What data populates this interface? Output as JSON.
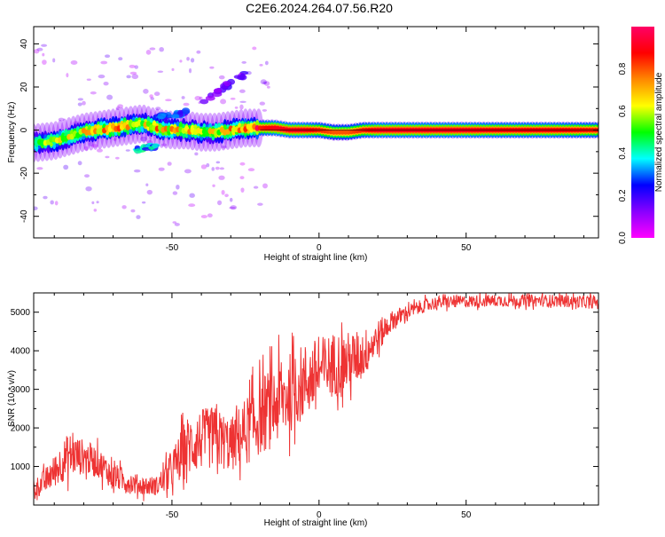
{
  "figure": {
    "title": "C2E6.2024.264.07.56.R20"
  },
  "chart_data": [
    {
      "type": "heatmap",
      "xlabel": "Height of straight line (km)",
      "ylabel": "Frequency (Hz)",
      "xlim": [
        -97,
        95
      ],
      "ylim": [
        -50,
        48
      ],
      "xticks": [
        -50,
        0,
        50
      ],
      "yticks": [
        -40,
        -20,
        0,
        20,
        40
      ],
      "colorbar": {
        "label": "Normalized spectral amplitude",
        "range": [
          0.0,
          1.0
        ],
        "ticks": [
          0.0,
          0.2,
          0.4,
          0.6,
          0.8
        ],
        "colors": [
          "#ff00ff",
          "#8800ff",
          "#0000ff",
          "#00ffff",
          "#00ff00",
          "#ffff00",
          "#ff8800",
          "#ff0000",
          "#ff0066"
        ]
      },
      "ridge": {
        "x": [
          -97,
          -90,
          -85,
          -80,
          -75,
          -70,
          -65,
          -60,
          -55,
          -50,
          -45,
          -40,
          -35,
          -30,
          -25,
          -20,
          -15,
          -10,
          -5,
          0,
          5,
          10,
          15,
          20,
          30,
          40,
          50,
          60,
          70,
          80,
          95
        ],
        "y": [
          -6,
          -5,
          -3,
          -1,
          0,
          1,
          2,
          3,
          1,
          0,
          0,
          -1,
          -1,
          0,
          1,
          1,
          1,
          0,
          0,
          0,
          -1,
          -1,
          0,
          0,
          0,
          0,
          0,
          0,
          0,
          0,
          0
        ],
        "amplitude": [
          0.5,
          0.6,
          0.6,
          0.65,
          0.7,
          0.75,
          0.7,
          0.6,
          0.7,
          0.65,
          0.65,
          0.6,
          0.6,
          0.7,
          0.75,
          0.85,
          0.9,
          0.9,
          0.9,
          0.85,
          0.8,
          0.8,
          0.85,
          0.9,
          0.9,
          0.9,
          0.9,
          0.88,
          0.88,
          0.88,
          0.85
        ]
      },
      "side_branches": [
        {
          "x": [
            -62,
            -58,
            -55
          ],
          "y": [
            -9,
            -8,
            -7
          ],
          "amplitude": 0.45
        },
        {
          "x": [
            -55,
            -50,
            -45
          ],
          "y": [
            6,
            7,
            8
          ],
          "amplitude": 0.3
        },
        {
          "x": [
            -40,
            -35,
            -30,
            -25
          ],
          "y": [
            12,
            17,
            22,
            26
          ],
          "amplitude": 0.2
        }
      ]
    },
    {
      "type": "line",
      "xlabel": "Height of straight line (km)",
      "ylabel": "SNR (10 * v/v)",
      "xlim": [
        -97,
        95
      ],
      "ylim": [
        0,
        5500
      ],
      "xticks": [
        -50,
        0,
        50
      ],
      "yticks": [
        1000,
        2000,
        3000,
        4000,
        5000
      ],
      "series": [
        {
          "color": "#ee3333",
          "x": [
            -97,
            -92,
            -88,
            -85,
            -80,
            -75,
            -70,
            -65,
            -60,
            -55,
            -50,
            -45,
            -40,
            -35,
            -30,
            -25,
            -20,
            -15,
            -10,
            -5,
            0,
            5,
            10,
            15,
            20,
            25,
            30,
            35,
            40,
            50,
            60,
            70,
            80,
            95
          ],
          "y": [
            400,
            700,
            1050,
            1300,
            1250,
            1100,
            750,
            600,
            500,
            500,
            900,
            1500,
            1700,
            1750,
            1550,
            1900,
            2300,
            2600,
            2900,
            3200,
            3450,
            3650,
            3700,
            3900,
            4350,
            4800,
            5000,
            5150,
            5250,
            5280,
            5300,
            5300,
            5300,
            5250
          ],
          "spread": [
            250,
            350,
            500,
            600,
            450,
            400,
            350,
            300,
            250,
            250,
            500,
            800,
            800,
            800,
            700,
            900,
            1000,
            1100,
            1050,
            1000,
            900,
            850,
            800,
            650,
            450,
            250,
            200,
            180,
            170,
            160,
            160,
            160,
            160,
            160
          ]
        }
      ]
    }
  ]
}
